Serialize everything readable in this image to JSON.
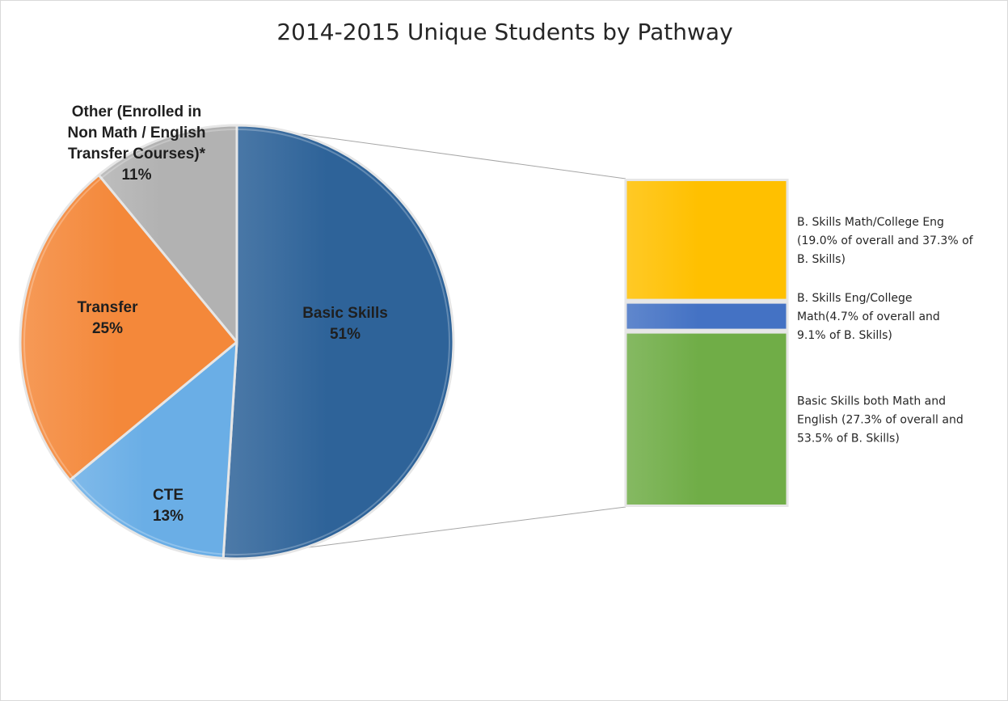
{
  "chart_data": [
    {
      "type": "pie",
      "title": "2014-2015 Unique Students by Pathway",
      "start_angle_deg": 0,
      "direction": "clockwise",
      "slices": [
        {
          "name": "Basic Skills",
          "value": 51,
          "pct_label": "51%",
          "color": "#2e6399",
          "label_lines": [
            "Basic Skills"
          ]
        },
        {
          "name": "CTE",
          "value": 13,
          "pct_label": "13%",
          "color": "#6aaee6",
          "label_lines": [
            "CTE"
          ]
        },
        {
          "name": "Transfer",
          "value": 25,
          "pct_label": "25%",
          "color": "#f4883a",
          "label_lines": [
            "Transfer"
          ]
        },
        {
          "name": "Other (Enrolled in Non Math / English Transfer Courses)*",
          "value": 11,
          "pct_label": "11%",
          "color": "#b2b2b2",
          "label_lines": [
            "Other (Enrolled in",
            "Non Math / English",
            "Transfer Courses)*"
          ]
        }
      ]
    },
    {
      "type": "bar",
      "stacked": true,
      "breakdown_of": "Basic Skills",
      "series": [
        {
          "name": "B. Skills Math/College Eng",
          "overall_pct": 19.0,
          "basic_skills_pct": 37.3,
          "color": "#ffc000",
          "label_lines": [
            "B. Skills Math/College Eng",
            "(19.0% of overall and 37.3% of",
            "B. Skills)"
          ]
        },
        {
          "name": "B. Skills Eng/College Math",
          "overall_pct": 4.7,
          "basic_skills_pct": 9.1,
          "color": "#4472c4",
          "label_lines": [
            "B. Skills Eng/College",
            "Math(4.7% of overall and",
            "9.1% of B. Skills)"
          ]
        },
        {
          "name": "Basic Skills both Math and English",
          "overall_pct": 27.3,
          "basic_skills_pct": 53.5,
          "color": "#70ad47",
          "label_lines": [
            "Basic Skills both Math and",
            "English (27.3% of overall and",
            "53.5% of B. Skills)"
          ]
        }
      ]
    }
  ]
}
